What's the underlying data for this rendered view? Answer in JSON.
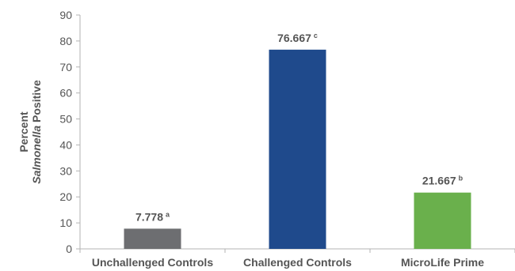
{
  "chart_data": {
    "type": "bar",
    "ylabel_line1": "Percent",
    "ylabel_line2_italic": "Salmonella",
    "ylabel_line2_rest": " Positive",
    "categories": [
      "Unchallenged Controls",
      "Challenged Controls",
      "MicroLife Prime"
    ],
    "values": [
      7.778,
      76.667,
      21.667
    ],
    "value_labels": [
      "7.778",
      "76.667",
      "21.667"
    ],
    "superscripts": [
      "a",
      "c",
      "b"
    ],
    "colors": [
      "#6d6e71",
      "#1f4a8c",
      "#6ab04c"
    ],
    "ylim": [
      0,
      90
    ],
    "yticks": [
      0,
      10,
      20,
      30,
      40,
      50,
      60,
      70,
      80,
      90
    ],
    "grid": false,
    "axis_color": "#b3b3b3"
  }
}
